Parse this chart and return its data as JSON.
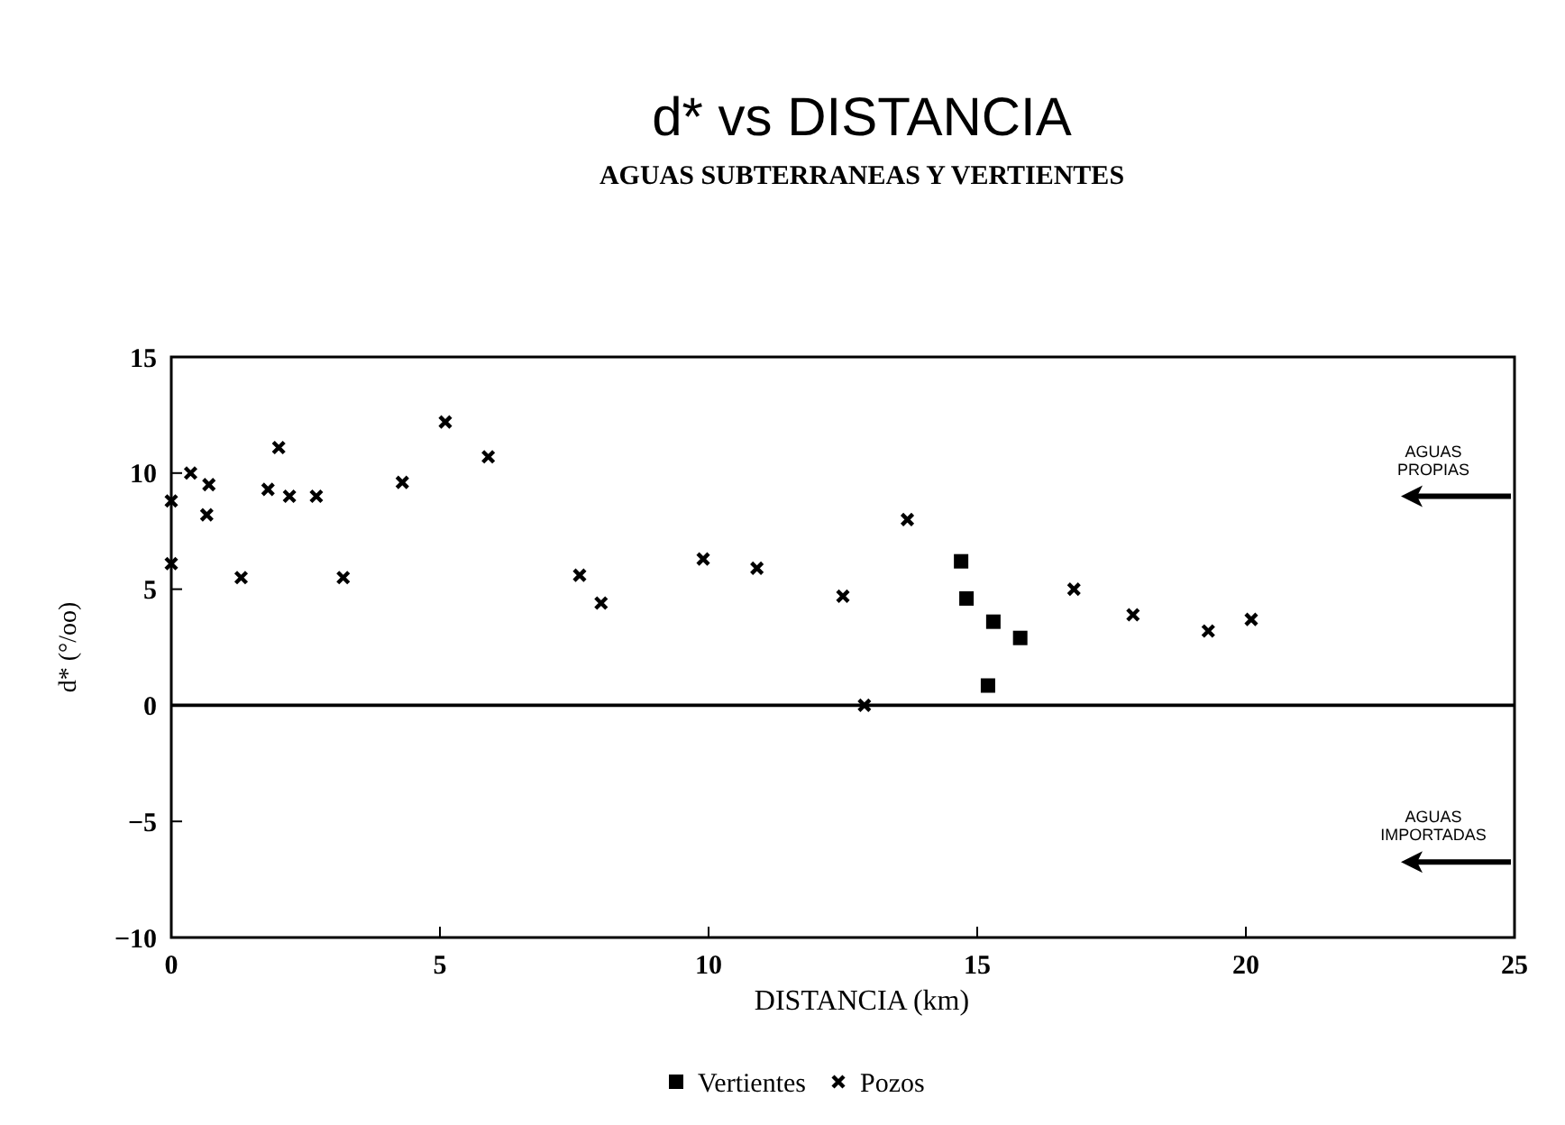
{
  "chart_data": {
    "type": "scatter",
    "title": "d* vs DISTANCIA",
    "subtitle": "AGUAS SUBTERRANEAS Y VERTIENTES",
    "xlabel": "DISTANCIA (km)",
    "ylabel": "d* (°/oo)",
    "xlim": [
      0,
      25
    ],
    "xticks": [
      0,
      5,
      10,
      15,
      20,
      25
    ],
    "ylim": [
      -10,
      15
    ],
    "yticks": [
      -10,
      -5,
      0,
      5,
      10,
      15
    ],
    "grid": false,
    "legend": "bottom",
    "series": [
      {
        "name": "Vertientes",
        "color": "#000000",
        "marker": "square",
        "x": [
          14.7,
          14.8,
          15.3,
          15.8,
          15.2
        ],
        "values": [
          6.2,
          4.6,
          3.6,
          2.9,
          0.85
        ]
      },
      {
        "name": "Pozos",
        "color": "#000000",
        "marker": "cross",
        "x": [
          0,
          0,
          0.36,
          0.7,
          0.66,
          1.8,
          2.2,
          2.7,
          1.3,
          3.2,
          2.0,
          4.3,
          5.1,
          5.9,
          7.6,
          8.0,
          9.9,
          10.9,
          12.5,
          12.9,
          13.7,
          16.8,
          17.9,
          19.3,
          20.1
        ],
        "values": [
          8.8,
          6.1,
          10.0,
          9.5,
          8.2,
          9.3,
          9.0,
          9.0,
          5.5,
          5.5,
          11.1,
          9.6,
          12.2,
          10.7,
          5.6,
          4.4,
          6.3,
          5.9,
          4.7,
          0.0,
          8.0,
          5.0,
          3.9,
          3.2,
          3.7
        ]
      }
    ],
    "ref_lines": [
      {
        "axis": "y",
        "value": 0,
        "color": "#000000",
        "line_style": "solid"
      }
    ],
    "annotations": [
      "AGUAS PROPIAS",
      "AGUAS IMPORTADAS"
    ]
  }
}
